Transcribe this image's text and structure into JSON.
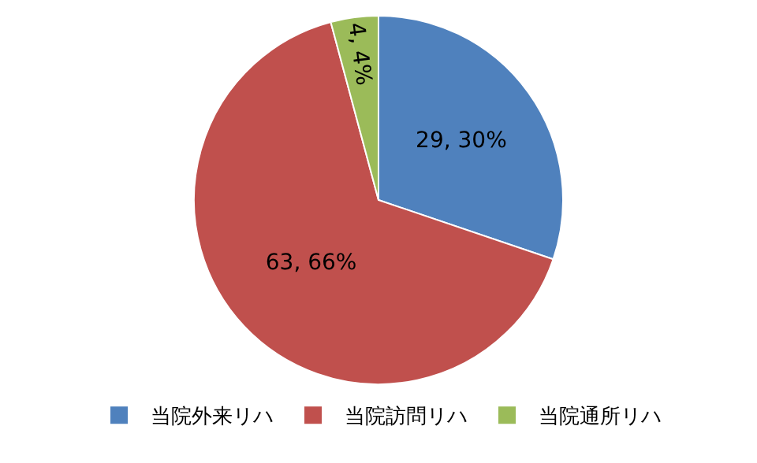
{
  "chart_data": {
    "type": "pie",
    "categories": [
      "当院外来リハ",
      "当院訪問リハ",
      "当院通所リハ"
    ],
    "values": [
      29,
      63,
      4
    ],
    "colors": [
      "#4f81bd",
      "#c0504d",
      "#9bbb59"
    ],
    "value_labels": [
      "29, 30%",
      "63, 66%",
      "4, 4%"
    ],
    "legend": "bottom"
  }
}
